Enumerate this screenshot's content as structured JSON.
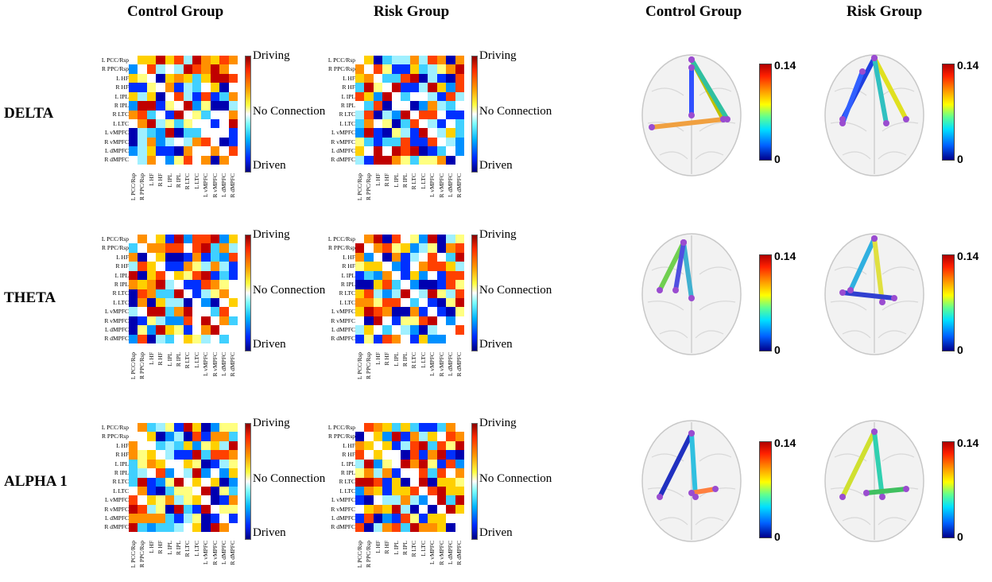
{
  "headers": {
    "control": "Control Group",
    "risk": "Risk Group"
  },
  "bands": [
    "DELTA",
    "THETA",
    "ALPHA 1"
  ],
  "regions": [
    "L PCC/Rsp",
    "R PPC/Rsp",
    "L HF",
    "R HF",
    "L IPL",
    "R IPL",
    "R LTC",
    "L LTC",
    "L vMPFC",
    "R vMPFC",
    "L dMPFC",
    "R dMPFC"
  ],
  "theta_regions": [
    "L PCC/Rsp",
    "R PPC/Rsp",
    "L HF",
    "R HF",
    "L IPL",
    "R IPL",
    "R LTC",
    "L LTC",
    "L vMPFC",
    "R vMPFC",
    "L dMPFC",
    "R dMPFC"
  ],
  "colorbar": {
    "top": "Driving",
    "middle": "No Connection",
    "bottom": "Driven"
  },
  "legend": {
    "max": "0.14",
    "min": "0"
  },
  "colors": {
    "driving": "#ff0000",
    "driven": "#0000cc",
    "neutral": "#ffffff"
  }
}
